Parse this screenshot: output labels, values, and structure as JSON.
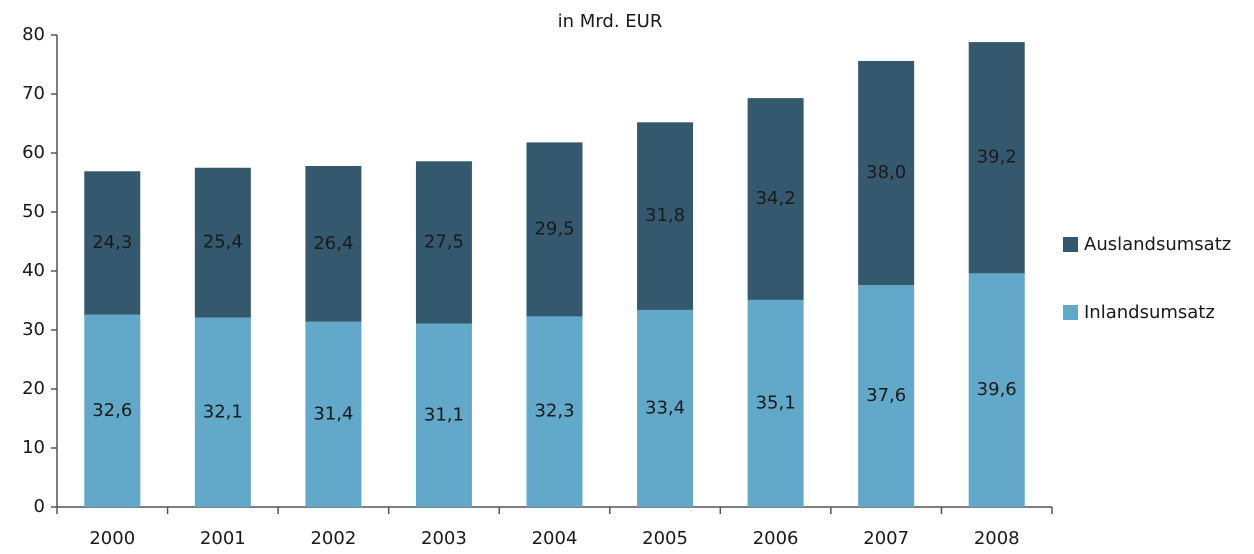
{
  "chart_data": {
    "type": "stacked_bar",
    "title": "in Mrd. EUR",
    "categories": [
      "2000",
      "2001",
      "2002",
      "2003",
      "2004",
      "2005",
      "2006",
      "2007",
      "2008"
    ],
    "series": [
      {
        "name": "Inlandsumsatz",
        "color": "#62a8c8",
        "values": [
          32.6,
          32.1,
          31.4,
          31.1,
          32.3,
          33.4,
          35.1,
          37.6,
          39.6
        ],
        "value_labels": [
          "32,6",
          "32,1",
          "31,4",
          "31,1",
          "32,3",
          "33,4",
          "35,1",
          "37,6",
          "39,6"
        ]
      },
      {
        "name": "Auslandsumsatz",
        "color": "#34596f",
        "values": [
          24.3,
          25.4,
          26.4,
          27.5,
          29.5,
          31.8,
          34.2,
          38.0,
          39.2
        ],
        "value_labels": [
          "24,3",
          "25,4",
          "26,4",
          "27,5",
          "29,5",
          "31,8",
          "34,2",
          "38,0",
          "39,2"
        ]
      }
    ],
    "ylim": [
      0,
      80
    ],
    "yticks": [
      0,
      10,
      20,
      30,
      40,
      50,
      60,
      70,
      80
    ],
    "grid": false,
    "legend": "right"
  }
}
